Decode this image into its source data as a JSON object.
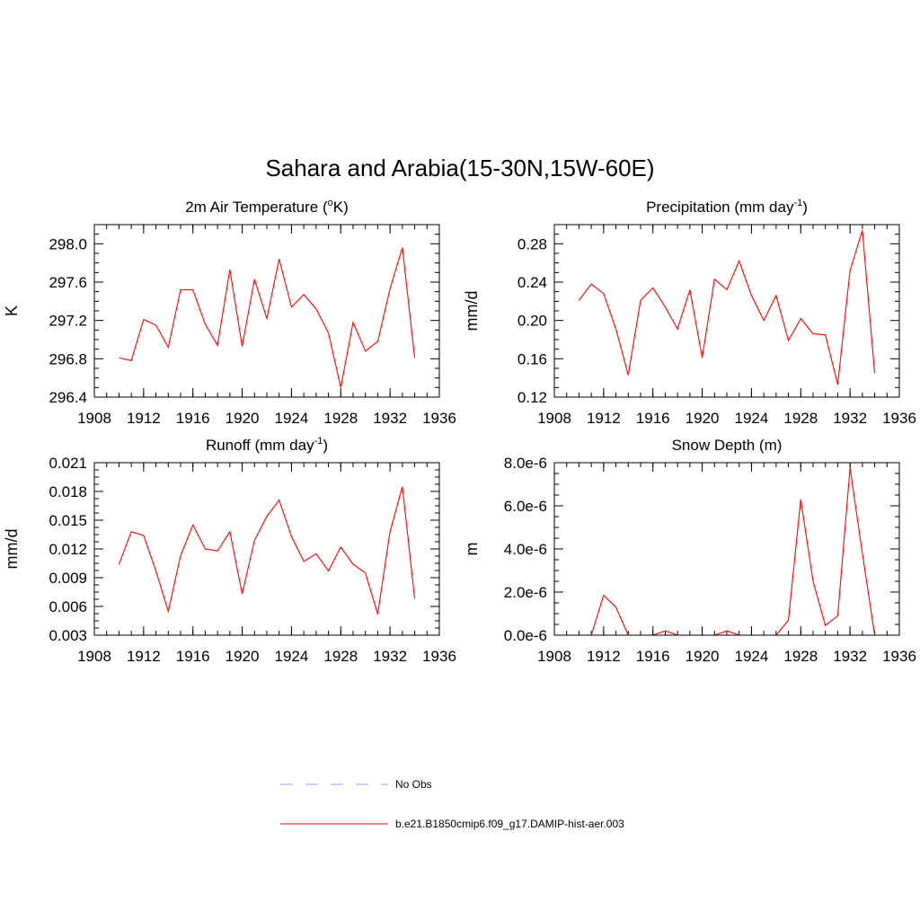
{
  "title": "Sahara and Arabia(15-30N,15W-60E)",
  "legend": [
    {
      "label": "No Obs",
      "color": "#9999ff",
      "dash": true
    },
    {
      "label": "b.e21.B1850cmip6.f09_g17.DAMIP-hist-aer.003",
      "color": "#ff0000",
      "dash": false
    }
  ],
  "chart_data": [
    {
      "type": "line",
      "title": "2m Air Temperature (",
      "title_sup": "o",
      "title_suffix": "K)",
      "ylabel": "K",
      "xlim": [
        1908,
        1936
      ],
      "xticks": [
        1908,
        1912,
        1916,
        1920,
        1924,
        1928,
        1932,
        1936
      ],
      "ylim": [
        296.4,
        298.2
      ],
      "yticks": [
        "296.4",
        "296.8",
        "297.2",
        "297.6",
        "298.0"
      ],
      "series": [
        {
          "color": "#ff0000",
          "x": [
            1910,
            1911,
            1912,
            1913,
            1914,
            1915,
            1916,
            1917,
            1918,
            1919,
            1920,
            1921,
            1922,
            1923,
            1924,
            1925,
            1926,
            1927,
            1928,
            1929,
            1930,
            1931,
            1932,
            1933,
            1934
          ],
          "y": [
            296.81,
            296.78,
            297.21,
            297.15,
            296.92,
            297.52,
            297.52,
            297.16,
            296.94,
            297.73,
            296.93,
            297.63,
            297.22,
            297.84,
            297.34,
            297.47,
            297.32,
            297.07,
            296.5,
            297.18,
            296.88,
            296.98,
            297.53,
            297.96,
            296.81
          ]
        }
      ]
    },
    {
      "type": "line",
      "title": "Precipitation (mm day",
      "title_sup": "-1",
      "title_suffix": ")",
      "ylabel": "mm/d",
      "xlim": [
        1908,
        1936
      ],
      "xticks": [
        1908,
        1912,
        1916,
        1920,
        1924,
        1928,
        1932,
        1936
      ],
      "ylim": [
        0.12,
        0.3
      ],
      "yticks": [
        "0.12",
        "0.16",
        "0.20",
        "0.24",
        "0.28"
      ],
      "series": [
        {
          "color": "#ff0000",
          "x": [
            1910,
            1911,
            1912,
            1913,
            1914,
            1915,
            1916,
            1917,
            1918,
            1919,
            1920,
            1921,
            1922,
            1923,
            1924,
            1925,
            1926,
            1927,
            1928,
            1929,
            1930,
            1931,
            1932,
            1933,
            1934
          ],
          "y": [
            0.221,
            0.238,
            0.228,
            0.191,
            0.143,
            0.221,
            0.234,
            0.214,
            0.191,
            0.232,
            0.161,
            0.243,
            0.232,
            0.262,
            0.226,
            0.2,
            0.226,
            0.179,
            0.202,
            0.186,
            0.185,
            0.133,
            0.252,
            0.294,
            0.145
          ]
        }
      ]
    },
    {
      "type": "line",
      "title": "Runoff (mm day",
      "title_sup": "-1",
      "title_suffix": ")",
      "ylabel": "mm/d",
      "xlim": [
        1908,
        1936
      ],
      "xticks": [
        1908,
        1912,
        1916,
        1920,
        1924,
        1928,
        1932,
        1936
      ],
      "ylim": [
        0.003,
        0.021
      ],
      "yticks": [
        "0.003",
        "0.006",
        "0.009",
        "0.012",
        "0.015",
        "0.018",
        "0.021"
      ],
      "series": [
        {
          "color": "#ff0000",
          "x": [
            1910,
            1911,
            1912,
            1913,
            1914,
            1915,
            1916,
            1917,
            1918,
            1919,
            1920,
            1921,
            1922,
            1923,
            1924,
            1925,
            1926,
            1927,
            1928,
            1929,
            1930,
            1931,
            1932,
            1933,
            1934
          ],
          "y": [
            0.0104,
            0.0138,
            0.0134,
            0.0097,
            0.0055,
            0.0113,
            0.0145,
            0.012,
            0.0118,
            0.0138,
            0.0073,
            0.0129,
            0.0154,
            0.0171,
            0.0133,
            0.0107,
            0.0115,
            0.0097,
            0.0122,
            0.0104,
            0.0095,
            0.0052,
            0.0138,
            0.0185,
            0.0068
          ]
        }
      ]
    },
    {
      "type": "line",
      "title": "Snow Depth (m)",
      "title_sup": "",
      "title_suffix": "",
      "ylabel": "m",
      "xlim": [
        1908,
        1936
      ],
      "xticks": [
        1908,
        1912,
        1916,
        1920,
        1924,
        1928,
        1932,
        1936
      ],
      "ylim": [
        0,
        8e-06
      ],
      "yticks": [
        "0.0e-6",
        "2.0e-6",
        "4.0e-6",
        "6.0e-6",
        "8.0e-6"
      ],
      "series": [
        {
          "color": "#ff0000",
          "x": [
            1910,
            1911,
            1912,
            1913,
            1914,
            1915,
            1916,
            1917,
            1918,
            1919,
            1920,
            1921,
            1922,
            1923,
            1924,
            1925,
            1926,
            1927,
            1928,
            1929,
            1930,
            1931,
            1932,
            1933,
            1934
          ],
          "y": [
            0,
            0,
            1.85e-06,
            1.3e-06,
            0,
            0,
            0,
            2e-07,
            0,
            0,
            0,
            0,
            2e-07,
            0,
            0,
            0,
            0,
            7e-07,
            6.3e-06,
            2.5e-06,
            4.5e-07,
            9e-07,
            7.75e-06,
            3.8e-06,
            0
          ]
        }
      ]
    }
  ]
}
